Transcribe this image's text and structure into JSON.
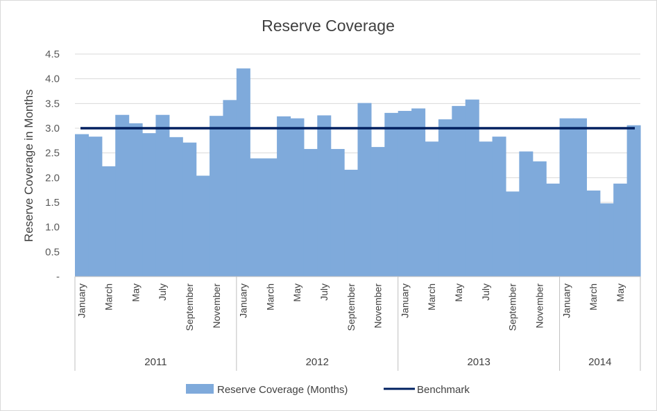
{
  "chart_data": {
    "type": "area",
    "title": "Reserve Coverage",
    "ylabel": "Reserve Coverage in Months",
    "xlabel": "",
    "ylim": [
      0,
      4.5
    ],
    "y_ticks": [
      "-",
      "0.5",
      "1.0",
      "1.5",
      "2.0",
      "2.5",
      "3.0",
      "3.5",
      "4.0",
      "4.5"
    ],
    "grid": "horizontal",
    "legend_position": "bottom",
    "colors": {
      "area": "#7faadb",
      "benchmark": "#002060",
      "grid": "#d9d9d9",
      "axis": "#bfbfbf"
    },
    "years": [
      {
        "label": "2011",
        "months": 12
      },
      {
        "label": "2012",
        "months": 12
      },
      {
        "label": "2013",
        "months": 12
      },
      {
        "label": "2014",
        "months": 6
      }
    ],
    "month_labels": [
      "January",
      "",
      "March",
      "",
      "May",
      "",
      "July",
      "",
      "September",
      "",
      "November",
      "",
      "January",
      "",
      "March",
      "",
      "May",
      "",
      "July",
      "",
      "September",
      "",
      "November",
      "",
      "January",
      "",
      "March",
      "",
      "May",
      "",
      "July",
      "",
      "September",
      "",
      "November",
      "",
      "January",
      "",
      "March",
      "",
      "May",
      ""
    ],
    "series": [
      {
        "name": "Reserve Coverage (Months)",
        "type": "area",
        "values": [
          2.88,
          2.83,
          2.23,
          3.27,
          3.1,
          2.9,
          3.27,
          2.82,
          2.71,
          2.04,
          3.25,
          3.57,
          4.21,
          2.39,
          2.39,
          3.24,
          3.2,
          2.58,
          3.26,
          2.58,
          2.16,
          3.51,
          2.62,
          3.31,
          3.35,
          3.4,
          2.73,
          3.18,
          3.45,
          3.58,
          2.73,
          2.83,
          1.72,
          2.53,
          2.33,
          1.88,
          3.2,
          3.2,
          1.74,
          1.48,
          1.88,
          3.06
        ]
      },
      {
        "name": "Benchmark",
        "type": "line",
        "value": 3.0
      }
    ]
  }
}
